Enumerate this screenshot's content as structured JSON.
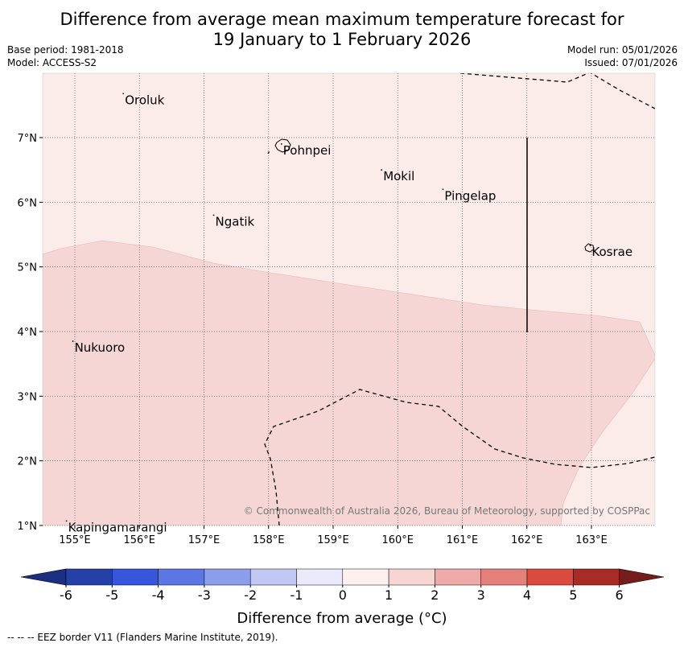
{
  "title": {
    "line1": "Difference from average mean maximum temperature forecast for",
    "line2": "19 January to 1 February 2026"
  },
  "meta": {
    "base_period": "Base period: 1981-2018",
    "model": "Model: ACCESS-S2",
    "model_run": "Model run: 05/01/2026",
    "issued": "Issued: 07/01/2026"
  },
  "map": {
    "lon_ticks": [
      "155°E",
      "156°E",
      "157°E",
      "158°E",
      "159°E",
      "160°E",
      "161°E",
      "162°E",
      "163°E"
    ],
    "lat_ticks": [
      "7°N",
      "6°N",
      "5°N",
      "4°N",
      "3°N",
      "2°N",
      "1°N"
    ],
    "places": [
      {
        "name": "Oroluk",
        "lon": 155.75,
        "lat": 7.68
      },
      {
        "name": "Pohnpei",
        "lon": 158.2,
        "lat": 6.9
      },
      {
        "name": "Mokil",
        "lon": 159.75,
        "lat": 6.5
      },
      {
        "name": "Pingelap",
        "lon": 160.7,
        "lat": 6.2
      },
      {
        "name": "Ngatik",
        "lon": 157.15,
        "lat": 5.8
      },
      {
        "name": "Kosrae",
        "lon": 162.98,
        "lat": 5.33
      },
      {
        "name": "Nukuoro",
        "lon": 154.97,
        "lat": 3.85
      },
      {
        "name": "Kapingamarangi",
        "lon": 154.87,
        "lat": 1.07
      }
    ],
    "copyright": "© Commonwealth of Australia 2026, Bureau of Meteorology, supported by COSPPac",
    "fill_colors": {
      "class_0_1": "#fbebe9",
      "class_1_2": "#f5d6d4"
    }
  },
  "colorbar": {
    "ticks": [
      "-6",
      "-5",
      "-4",
      "-3",
      "-2",
      "-1",
      "0",
      "1",
      "2",
      "3",
      "4",
      "5",
      "6"
    ],
    "colors": [
      "#2540a6",
      "#3656dd",
      "#5c76e4",
      "#8b9deb",
      "#c1c8f3",
      "#e9ebfb",
      "#fdf0ef",
      "#f7d5d3",
      "#eeaaa8",
      "#e5807b",
      "#da4a3e",
      "#a82b26"
    ],
    "under_color": "#1a2f7f",
    "over_color": "#751c1c",
    "label": "Difference from average (°C)"
  },
  "footer": "--  --  -- EEZ border V11 (Flanders Marine Institute, 2019)."
}
